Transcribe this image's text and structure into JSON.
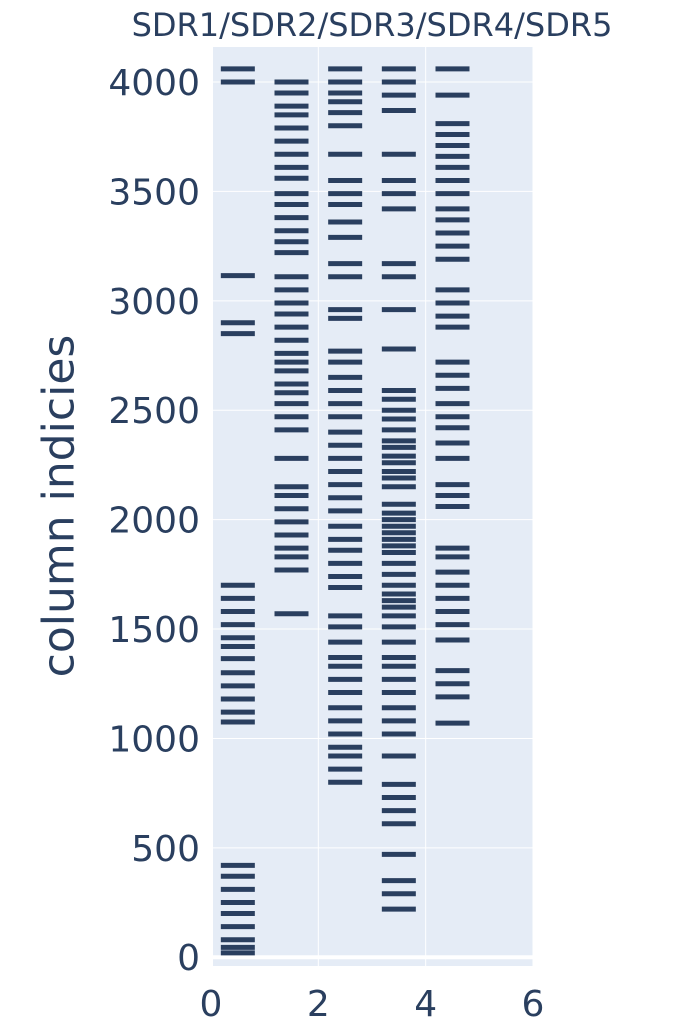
{
  "chart_data": {
    "type": "scatter",
    "title": "SDR1/SDR2/SDR3/SDR4/SDR5",
    "xlabel": "",
    "ylabel": "column indicies",
    "xlim": [
      0,
      6
    ],
    "ylim": [
      -40,
      4160
    ],
    "x_ticks": [
      "0",
      "2",
      "4",
      "6"
    ],
    "y_ticks": [
      "0",
      "500",
      "1000",
      "1500",
      "2000",
      "2500",
      "3000",
      "3500",
      "4000"
    ],
    "x_tick_values": [
      0,
      2,
      4,
      6
    ],
    "y_tick_values": [
      0,
      500,
      1000,
      1500,
      2000,
      2500,
      3000,
      3500,
      4000
    ],
    "marker": "horizontal-line",
    "marker_color": "#2a3f5f",
    "plot_background": "#e5ecf6",
    "grid": true,
    "series": [
      {
        "x": 0.5,
        "values": [
          4060,
          4000,
          3115,
          2900,
          2850,
          1700,
          1640,
          1580,
          1520,
          1460,
          1420,
          1365,
          1300,
          1240,
          1180,
          1120,
          1075,
          420,
          370,
          310,
          250,
          200,
          140,
          80,
          45,
          20
        ]
      },
      {
        "x": 1.5,
        "values": [
          4000,
          3950,
          3890,
          3850,
          3790,
          3730,
          3670,
          3610,
          3560,
          3490,
          3440,
          3380,
          3320,
          3270,
          3220,
          3110,
          3050,
          2990,
          2940,
          2880,
          2820,
          2760,
          2720,
          2680,
          2620,
          2580,
          2530,
          2470,
          2410,
          2280,
          2150,
          2110,
          2050,
          1990,
          1930,
          1870,
          1830,
          1770,
          1570
        ]
      },
      {
        "x": 2.5,
        "values": [
          4060,
          4000,
          3950,
          3910,
          3860,
          3800,
          3670,
          3550,
          3490,
          3440,
          3360,
          3290,
          3170,
          3110,
          2960,
          2920,
          2770,
          2720,
          2650,
          2590,
          2530,
          2470,
          2400,
          2340,
          2280,
          2220,
          2160,
          2100,
          2040,
          1970,
          1910,
          1860,
          1800,
          1740,
          1690,
          1560,
          1510,
          1440,
          1370,
          1330,
          1270,
          1210,
          1140,
          1080,
          1020,
          960,
          920,
          860,
          800
        ]
      },
      {
        "x": 3.5,
        "values": [
          4060,
          4000,
          3940,
          3870,
          3670,
          3550,
          3490,
          3420,
          3170,
          3110,
          2960,
          2780,
          2590,
          2550,
          2500,
          2460,
          2410,
          2360,
          2330,
          2290,
          2260,
          2220,
          2190,
          2150,
          2070,
          2030,
          2000,
          1970,
          1940,
          1910,
          1880,
          1850,
          1800,
          1750,
          1700,
          1660,
          1630,
          1600,
          1560,
          1510,
          1440,
          1370,
          1330,
          1270,
          1210,
          1140,
          1080,
          1020,
          920,
          790,
          730,
          670,
          610,
          470,
          350,
          290,
          220
        ]
      },
      {
        "x": 4.5,
        "values": [
          4060,
          3940,
          3810,
          3760,
          3710,
          3660,
          3610,
          3550,
          3490,
          3420,
          3370,
          3310,
          3250,
          3190,
          3050,
          2990,
          2930,
          2880,
          2720,
          2660,
          2600,
          2530,
          2470,
          2420,
          2350,
          2280,
          2160,
          2110,
          2060,
          1870,
          1830,
          1760,
          1700,
          1640,
          1580,
          1520,
          1450,
          1310,
          1250,
          1190,
          1070
        ]
      }
    ]
  }
}
